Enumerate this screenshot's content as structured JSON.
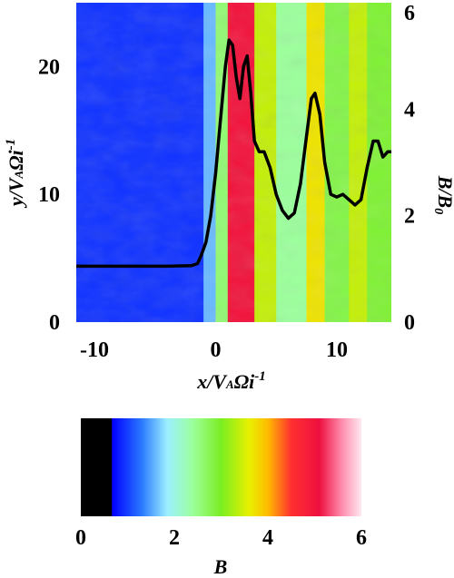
{
  "chart_data": [
    {
      "type": "heatmap",
      "description_free": true,
      "xlabel": "x/V_AΩi⁻¹",
      "ylabel_left": "y/V_AΩi⁻¹",
      "ylabel_right": "B/B0",
      "xlim": [
        -11.5,
        14.5
      ],
      "ylim_left": [
        0,
        25
      ],
      "ylim_right": [
        0,
        6
      ],
      "x_ticks": [
        "-10",
        "0",
        "10"
      ],
      "x_tick_values": [
        -10,
        0,
        10
      ],
      "y_ticks_left": [
        "0",
        "10",
        "20"
      ],
      "y_tick_values_left": [
        0,
        10,
        20
      ],
      "y_ticks_right": [
        "0",
        "2",
        "4",
        "6"
      ],
      "y_tick_values_right": [
        0,
        2,
        4,
        6
      ],
      "heatmap_bands": [
        {
          "x0": -11.5,
          "x1": -1.0,
          "B": 0.95
        },
        {
          "x0": -1.0,
          "x1": 0.0,
          "B": 1.6
        },
        {
          "x0": 0.0,
          "x1": 1.0,
          "B": 2.6
        },
        {
          "x0": 1.0,
          "x1": 3.2,
          "B": 5.0
        },
        {
          "x0": 3.2,
          "x1": 5.0,
          "B": 3.4
        },
        {
          "x0": 5.0,
          "x1": 7.5,
          "B": 2.4
        },
        {
          "x0": 7.5,
          "x1": 9.0,
          "B": 3.7
        },
        {
          "x0": 9.0,
          "x1": 11.0,
          "B": 2.8
        },
        {
          "x0": 11.0,
          "x1": 12.5,
          "B": 3.4
        },
        {
          "x0": 12.5,
          "x1": 14.5,
          "B": 2.9
        }
      ],
      "series": [
        {
          "x": [
            -11.5,
            -8,
            -4,
            -2,
            -1.5,
            -1.2,
            -0.8,
            -0.4,
            0.0,
            0.4,
            0.8,
            1.1,
            1.4,
            1.7,
            2.0,
            2.3,
            2.6,
            2.9,
            3.2,
            3.6,
            4.0,
            4.5,
            5.0,
            5.5,
            6.0,
            6.5,
            7.0,
            7.5,
            7.9,
            8.2,
            8.6,
            9.0,
            9.5,
            10.0,
            10.5,
            11.0,
            11.5,
            12.0,
            12.5,
            13.0,
            13.4,
            13.8,
            14.2,
            14.5
          ],
          "y": [
            1.05,
            1.05,
            1.05,
            1.06,
            1.1,
            1.25,
            1.5,
            2.0,
            2.8,
            3.8,
            4.8,
            5.3,
            5.2,
            4.6,
            4.2,
            4.8,
            5.0,
            4.3,
            3.4,
            3.2,
            3.2,
            2.9,
            2.4,
            2.1,
            1.95,
            2.05,
            2.6,
            3.5,
            4.2,
            4.3,
            3.9,
            3.0,
            2.4,
            2.35,
            2.4,
            2.3,
            2.2,
            2.3,
            2.9,
            3.4,
            3.4,
            3.1,
            3.2,
            3.2
          ]
        }
      ]
    },
    {
      "type": "heatmap",
      "xlabel": "B",
      "xlim": [
        0,
        6
      ],
      "x_ticks": [
        "0",
        "2",
        "4",
        "6"
      ],
      "x_tick_values": [
        0,
        2,
        4,
        6
      ],
      "colorbar_stops": [
        {
          "v": 0.0,
          "color": "#000000"
        },
        {
          "v": 0.66,
          "color": "#000000"
        },
        {
          "v": 0.67,
          "color": "#0000ff"
        },
        {
          "v": 1.3,
          "color": "#2a78ff"
        },
        {
          "v": 1.85,
          "color": "#9cf0ff"
        },
        {
          "v": 2.4,
          "color": "#9cff9c"
        },
        {
          "v": 3.0,
          "color": "#7aee22"
        },
        {
          "v": 3.6,
          "color": "#e8f000"
        },
        {
          "v": 4.0,
          "color": "#ffbb00"
        },
        {
          "v": 4.5,
          "color": "#ff3030"
        },
        {
          "v": 5.1,
          "color": "#ee1040"
        },
        {
          "v": 5.6,
          "color": "#ff90b0"
        },
        {
          "v": 6.0,
          "color": "#ffe8f0"
        }
      ]
    }
  ],
  "colors": {
    "curve": "#000000",
    "background": "#ffffff"
  }
}
